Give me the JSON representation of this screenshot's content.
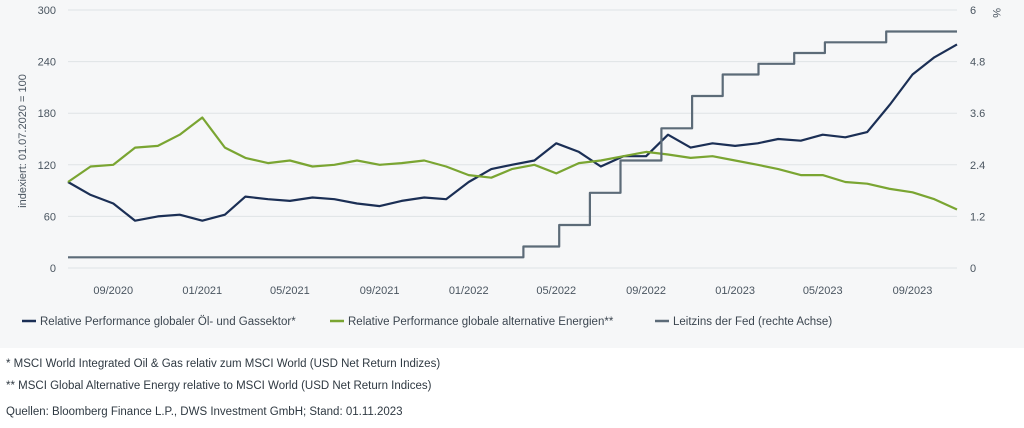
{
  "colors": {
    "oil_gas": "#1b2f55",
    "alt_energy": "#7aa532",
    "fed_rate": "#5c6b78",
    "grid": "#dfe3e6"
  },
  "chart_data": {
    "type": "line",
    "left_axis": {
      "label": "indexiert: 01.07.2020 = 100",
      "ylim": [
        0,
        300
      ],
      "ticks": [
        "0",
        "60",
        "120",
        "180",
        "240",
        "300"
      ]
    },
    "right_axis": {
      "label": "%",
      "ylim": [
        0,
        6
      ],
      "ticks": [
        "0",
        "1.2",
        "2.4",
        "3.6",
        "4.8",
        "6"
      ]
    },
    "xlim": [
      "2020-07-01",
      "2023-11-01"
    ],
    "x_ticks": [
      "09/2020",
      "01/2021",
      "05/2021",
      "09/2021",
      "01/2022",
      "05/2022",
      "09/2022",
      "01/2023",
      "05/2023",
      "09/2023"
    ],
    "grid": true,
    "legend_position": "bottom",
    "series": [
      {
        "name": "Relative Performance globaler Öl- und Gassektor*",
        "axis": "left",
        "x": [
          "2020-07-01",
          "2020-08-01",
          "2020-09-01",
          "2020-10-01",
          "2020-11-01",
          "2020-12-01",
          "2021-01-01",
          "2021-02-01",
          "2021-03-01",
          "2021-04-01",
          "2021-05-01",
          "2021-06-01",
          "2021-07-01",
          "2021-08-01",
          "2021-09-01",
          "2021-10-01",
          "2021-11-01",
          "2021-12-01",
          "2022-01-01",
          "2022-02-01",
          "2022-03-01",
          "2022-04-01",
          "2022-05-01",
          "2022-06-01",
          "2022-07-01",
          "2022-08-01",
          "2022-09-01",
          "2022-10-01",
          "2022-11-01",
          "2022-12-01",
          "2023-01-01",
          "2023-02-01",
          "2023-03-01",
          "2023-04-01",
          "2023-05-01",
          "2023-06-01",
          "2023-07-01",
          "2023-08-01",
          "2023-09-01",
          "2023-10-01",
          "2023-11-01"
        ],
        "values": [
          100,
          85,
          75,
          55,
          60,
          62,
          55,
          62,
          83,
          80,
          78,
          82,
          80,
          75,
          72,
          78,
          82,
          80,
          100,
          115,
          120,
          125,
          145,
          135,
          118,
          130,
          130,
          155,
          140,
          145,
          142,
          145,
          150,
          148,
          155,
          152,
          158,
          190,
          225,
          245,
          260
        ]
      },
      {
        "name": "Relative Performance globale alternative Energien**",
        "axis": "left",
        "x": [
          "2020-07-01",
          "2020-08-01",
          "2020-09-01",
          "2020-10-01",
          "2020-11-01",
          "2020-12-01",
          "2021-01-01",
          "2021-02-01",
          "2021-03-01",
          "2021-04-01",
          "2021-05-01",
          "2021-06-01",
          "2021-07-01",
          "2021-08-01",
          "2021-09-01",
          "2021-10-01",
          "2021-11-01",
          "2021-12-01",
          "2022-01-01",
          "2022-02-01",
          "2022-03-01",
          "2022-04-01",
          "2022-05-01",
          "2022-06-01",
          "2022-07-01",
          "2022-08-01",
          "2022-09-01",
          "2022-10-01",
          "2022-11-01",
          "2022-12-01",
          "2023-01-01",
          "2023-02-01",
          "2023-03-01",
          "2023-04-01",
          "2023-05-01",
          "2023-06-01",
          "2023-07-01",
          "2023-08-01",
          "2023-09-01",
          "2023-10-01",
          "2023-11-01"
        ],
        "values": [
          100,
          118,
          120,
          140,
          142,
          155,
          175,
          140,
          128,
          122,
          125,
          118,
          120,
          125,
          120,
          122,
          125,
          118,
          108,
          105,
          115,
          120,
          110,
          122,
          125,
          130,
          135,
          132,
          128,
          130,
          125,
          120,
          115,
          108,
          108,
          100,
          98,
          92,
          88,
          80,
          68
        ]
      },
      {
        "name": "Leitzins der Fed (rechte Achse)",
        "axis": "right",
        "step": true,
        "x": [
          "2020-07-01",
          "2022-03-17",
          "2022-05-05",
          "2022-06-16",
          "2022-07-28",
          "2022-09-22",
          "2022-11-03",
          "2022-12-15",
          "2023-02-02",
          "2023-03-23",
          "2023-05-04",
          "2023-07-27",
          "2023-11-01"
        ],
        "values": [
          0.25,
          0.5,
          1.0,
          1.75,
          2.5,
          3.25,
          4.0,
          4.5,
          4.75,
          5.0,
          5.25,
          5.5,
          5.5
        ]
      }
    ]
  },
  "footnotes": {
    "note1": "* MSCI World Integrated Oil & Gas relativ zum MSCI World (USD Net Return Indizes)",
    "note2": "** MSCI Global Alternative Energy relative to MSCI World (USD Net Return Indices)",
    "source": "Quellen: Bloomberg Finance L.P., DWS Investment GmbH; Stand: 01.11.2023"
  }
}
